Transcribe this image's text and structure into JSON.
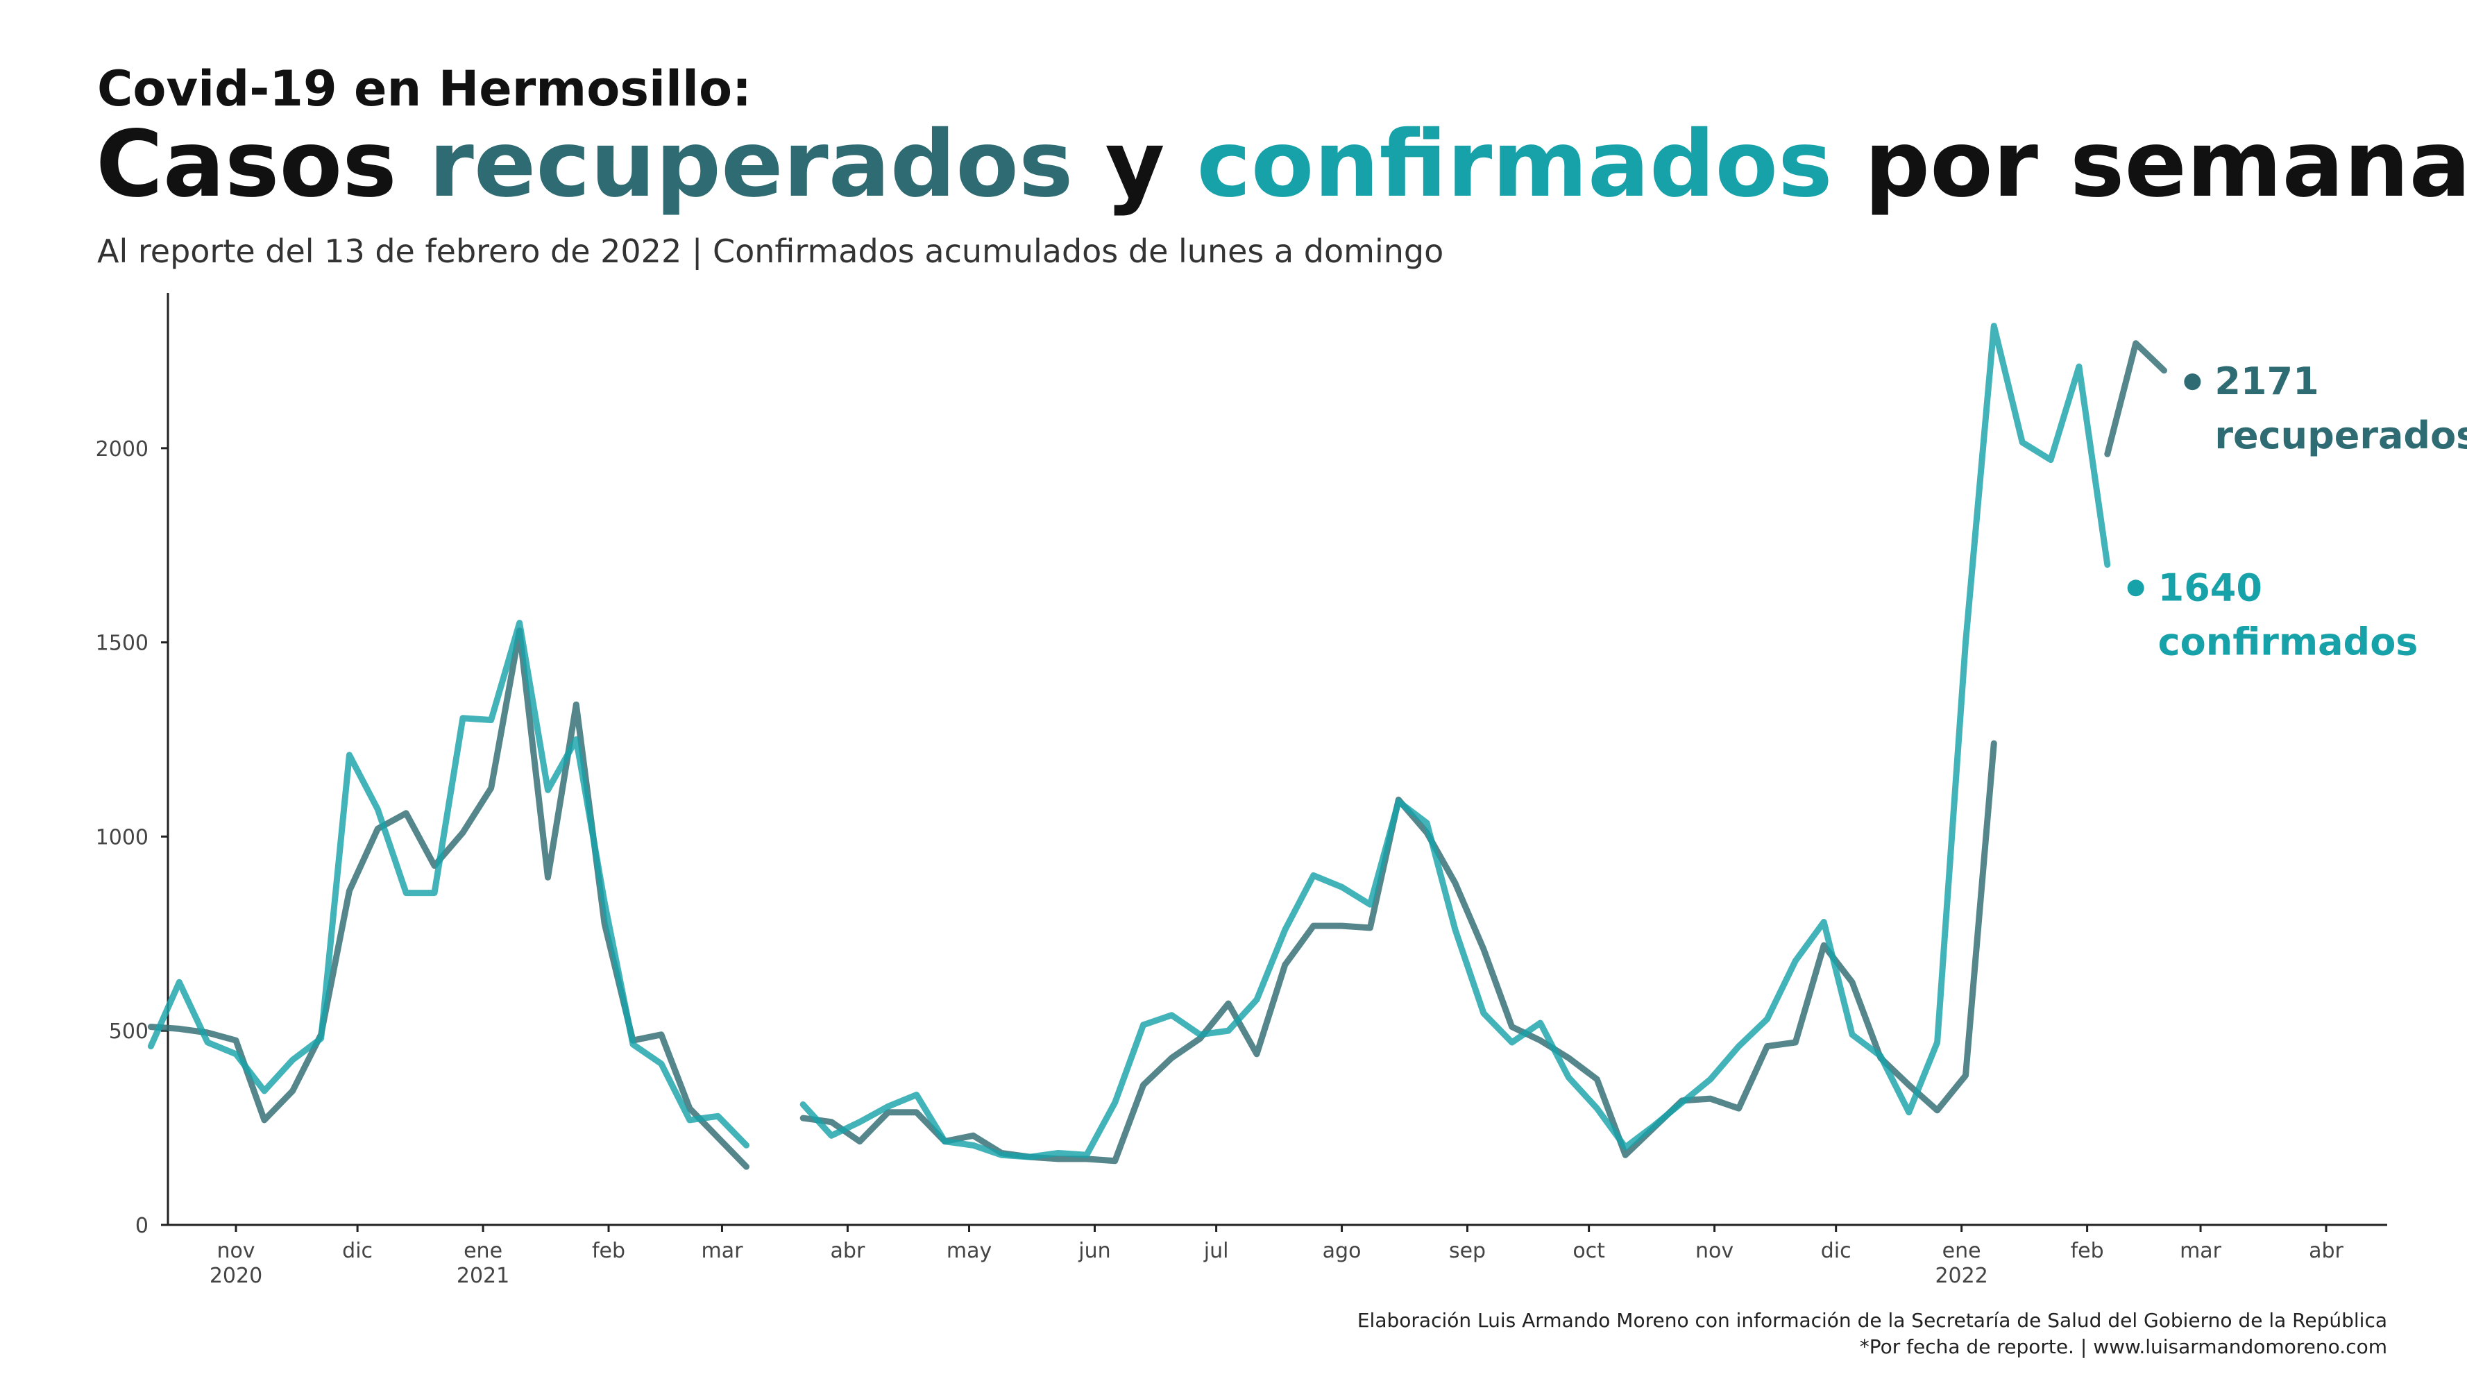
{
  "header": {
    "kicker": "Covid-19 en Hermosillo:",
    "title_parts": [
      {
        "text": "Casos ",
        "color": "#111111"
      },
      {
        "text": "recuperados",
        "color": "#2e6b72"
      },
      {
        "text": " y ",
        "color": "#111111"
      },
      {
        "text": "confirmados",
        "color": "#17a2aa"
      },
      {
        "text": " por semana",
        "color": "#111111"
      }
    ],
    "subtitle": "Al reporte del 13 de febrero de 2022 | Confirmados acumulados de lunes a domingo"
  },
  "caption": {
    "line1": "Elaboración Luis Armando Moreno con información de la Secretaría de Salud del Gobierno de la República",
    "line2": "*Por fecha de reporte. | www.luisarmandomoreno.com"
  },
  "chart_data": {
    "type": "line",
    "x_start": "2020-10-11",
    "x_step_days": 7,
    "ylim": [
      0,
      2400
    ],
    "yticks": [
      0,
      500,
      1000,
      1500,
      2000
    ],
    "grid": false,
    "xticks": [
      {
        "date": "2020-11-01",
        "label": "nov",
        "sub": "2020"
      },
      {
        "date": "2020-12-01",
        "label": "dic",
        "sub": ""
      },
      {
        "date": "2021-01-01",
        "label": "ene",
        "sub": "2021"
      },
      {
        "date": "2021-02-01",
        "label": "feb",
        "sub": ""
      },
      {
        "date": "2021-03-01",
        "label": "mar",
        "sub": ""
      },
      {
        "date": "2021-04-01",
        "label": "abr",
        "sub": ""
      },
      {
        "date": "2021-05-01",
        "label": "may",
        "sub": ""
      },
      {
        "date": "2021-06-01",
        "label": "jun",
        "sub": ""
      },
      {
        "date": "2021-07-01",
        "label": "jul",
        "sub": ""
      },
      {
        "date": "2021-08-01",
        "label": "ago",
        "sub": ""
      },
      {
        "date": "2021-09-01",
        "label": "sep",
        "sub": ""
      },
      {
        "date": "2021-10-01",
        "label": "oct",
        "sub": ""
      },
      {
        "date": "2021-11-01",
        "label": "nov",
        "sub": ""
      },
      {
        "date": "2021-12-01",
        "label": "dic",
        "sub": ""
      },
      {
        "date": "2022-01-01",
        "label": "ene",
        "sub": "2022"
      },
      {
        "date": "2022-02-01",
        "label": "feb",
        "sub": ""
      },
      {
        "date": "2022-03-01",
        "label": "mar",
        "sub": ""
      },
      {
        "date": "2022-04-01",
        "label": "abr",
        "sub": ""
      }
    ],
    "series": [
      {
        "key": "recuperados",
        "color": "#2e6b72",
        "values": [
          510,
          505,
          495,
          475,
          270,
          345,
          490,
          860,
          1020,
          1060,
          925,
          1010,
          1125,
          1530,
          895,
          1340,
          775,
          475,
          490,
          300,
          225,
          150,
          null,
          275,
          265,
          215,
          290,
          290,
          215,
          230,
          185,
          175,
          170,
          170,
          165,
          360,
          430,
          480,
          570,
          440,
          670,
          770,
          770,
          765,
          1095,
          1010,
          880,
          710,
          510,
          475,
          430,
          375,
          180,
          250,
          320,
          325,
          300,
          460,
          470,
          720,
          625,
          430,
          360,
          295,
          385,
          1240,
          null,
          null,
          null,
          1985,
          2270,
          2200
        ],
        "end_value": 2171,
        "end_value_label": "2171",
        "end_label": "recuperados"
      },
      {
        "key": "confirmados",
        "color": "#17a2aa",
        "values": [
          460,
          625,
          470,
          440,
          345,
          425,
          480,
          1210,
          1070,
          855,
          855,
          1305,
          1300,
          1550,
          1120,
          1250,
          830,
          465,
          415,
          270,
          280,
          205,
          null,
          310,
          230,
          265,
          305,
          335,
          215,
          205,
          180,
          175,
          185,
          180,
          315,
          515,
          540,
          490,
          500,
          580,
          760,
          900,
          870,
          825,
          1090,
          1035,
          760,
          545,
          470,
          520,
          380,
          300,
          200,
          255,
          315,
          375,
          460,
          530,
          680,
          780,
          490,
          435,
          290,
          470,
          1500,
          2315,
          2015,
          1970,
          2210,
          1700
        ],
        "end_value": 1640,
        "end_value_label": "1640",
        "end_label": "confirmados"
      }
    ]
  }
}
